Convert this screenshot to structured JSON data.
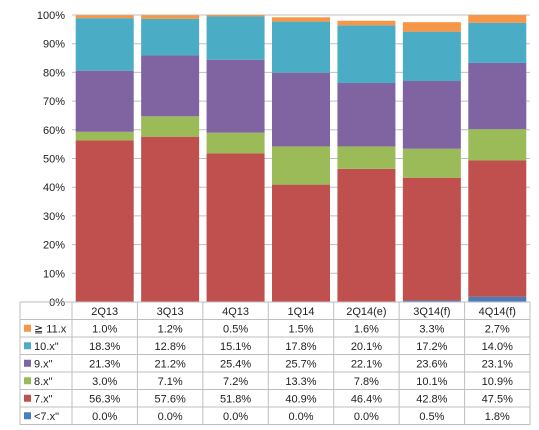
{
  "chart_data": {
    "type": "bar",
    "stacked": true,
    "percent_stacked": true,
    "categories": [
      "2Q13",
      "3Q13",
      "4Q13",
      "1Q14",
      "2Q14(e)",
      "3Q14(f)",
      "4Q14(f)"
    ],
    "series": [
      {
        "name": "<7.x\"",
        "color": "#4a7ebb",
        "values": [
          0.0,
          0.0,
          0.0,
          0.0,
          0.0,
          0.5,
          1.8
        ],
        "labels": [
          "0.0%",
          "0.0%",
          "0.0%",
          "0.0%",
          "0.0%",
          "0.5%",
          "1.8%"
        ]
      },
      {
        "name": "7.x\"",
        "color": "#c0504d",
        "values": [
          56.3,
          57.6,
          51.8,
          40.9,
          46.4,
          42.8,
          47.5
        ],
        "labels": [
          "56.3%",
          "57.6%",
          "51.8%",
          "40.9%",
          "46.4%",
          "42.8%",
          "47.5%"
        ]
      },
      {
        "name": "8.x\"",
        "color": "#9bbb59",
        "values": [
          3.0,
          7.1,
          7.2,
          13.3,
          7.8,
          10.1,
          10.9
        ],
        "labels": [
          "3.0%",
          "7.1%",
          "7.2%",
          "13.3%",
          "7.8%",
          "10.1%",
          "10.9%"
        ]
      },
      {
        "name": "9.x\"",
        "color": "#8064a2",
        "values": [
          21.3,
          21.2,
          25.4,
          25.7,
          22.1,
          23.6,
          23.1
        ],
        "labels": [
          "21.3%",
          "21.2%",
          "25.4%",
          "25.7%",
          "22.1%",
          "23.6%",
          "23.1%"
        ]
      },
      {
        "name": "10.x\"",
        "color": "#4bacc6",
        "values": [
          18.3,
          12.8,
          15.1,
          17.8,
          20.1,
          17.2,
          14.0
        ],
        "labels": [
          "18.3%",
          "12.8%",
          "15.1%",
          "17.8%",
          "20.1%",
          "17.2%",
          "14.0%"
        ]
      },
      {
        "name": "≧ 11.x",
        "color": "#f79646",
        "values": [
          1.0,
          1.2,
          0.5,
          1.5,
          1.6,
          3.3,
          2.7
        ],
        "labels": [
          "1.0%",
          "1.2%",
          "0.5%",
          "1.5%",
          "1.6%",
          "3.3%",
          "2.7%"
        ]
      }
    ],
    "y_ticks": [
      "0%",
      "10%",
      "20%",
      "30%",
      "40%",
      "50%",
      "60%",
      "70%",
      "80%",
      "90%",
      "100%"
    ],
    "ylim": [
      0,
      100
    ],
    "title": "",
    "xlabel": "",
    "ylabel": "",
    "grid": true,
    "legend": "data-table-left"
  }
}
